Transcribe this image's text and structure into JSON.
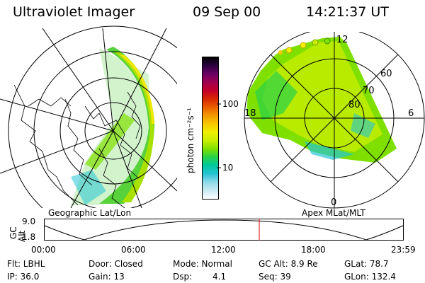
{
  "header": {
    "instrument": "Ultraviolet Imager",
    "date": "09 Sep 00",
    "time": "14:21:37 UT"
  },
  "colorbar": {
    "label": "photon cm⁻²s⁻¹",
    "ticks": [
      "100",
      "10"
    ],
    "colors": [
      "#ffffff",
      "#c9eaf2",
      "#8fd9e8",
      "#25c4d4",
      "#00c8a0",
      "#27d24a",
      "#7fe000",
      "#c8ee00",
      "#f0f000",
      "#f8c800",
      "#f39a00",
      "#ea5f00",
      "#d62800",
      "#c4002a",
      "#a00050",
      "#6a0064",
      "#2a0040",
      "#000000"
    ]
  },
  "panels": {
    "left_label": "Geographic Lat/Lon",
    "right_label": "Apex MLat/MLT",
    "polar_labels": {
      "top": "12",
      "bottom": "0",
      "left": "18",
      "right": "6",
      "rings": [
        "60",
        "70",
        "80"
      ]
    }
  },
  "timeline": {
    "axis_label_1": "GC",
    "axis_label_2": "Alt",
    "ymax": "9.0",
    "ymin": "1.8",
    "ticks": [
      "00:00",
      "06:00",
      "12:00",
      "18:00",
      "23:59"
    ],
    "marker_color": "#d00000"
  },
  "status": {
    "row1": {
      "flt": "Flt: LBHL",
      "door": "Door: Closed",
      "mode": "Mode: Normal",
      "gcalt": "GC Alt: 8.9 Re",
      "glat": "GLat: 78.7"
    },
    "row2": {
      "ip": "IP: 36.0",
      "gain": "Gain: 13",
      "dsp_label": "Dsp:",
      "dsp_value": "4.1",
      "seq": "Seq: 39",
      "glon": "GLon: 132.4"
    }
  }
}
